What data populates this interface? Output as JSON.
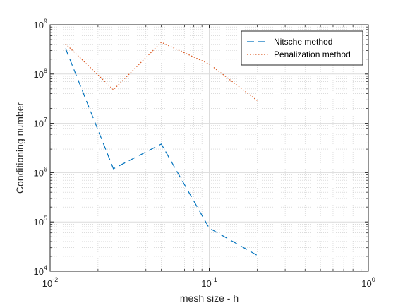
{
  "chart_data": {
    "type": "line",
    "xlabel": "mesh size - h",
    "ylabel": "Conditioning number",
    "x_scale": "log",
    "y_scale": "log",
    "xlim": [
      0.01,
      1
    ],
    "ylim": [
      10000,
      1000000000
    ],
    "grid": true,
    "minor_grid": true,
    "legend_position": "top-right",
    "x_ticks": [
      {
        "value": 0.01,
        "base": "10",
        "exp": "-2"
      },
      {
        "value": 0.1,
        "base": "10",
        "exp": "-1"
      },
      {
        "value": 1,
        "base": "10",
        "exp": "0"
      }
    ],
    "y_ticks": [
      {
        "value": 10000,
        "base": "10",
        "exp": "4"
      },
      {
        "value": 100000,
        "base": "10",
        "exp": "5"
      },
      {
        "value": 1000000,
        "base": "10",
        "exp": "6"
      },
      {
        "value": 10000000,
        "base": "10",
        "exp": "7"
      },
      {
        "value": 100000000,
        "base": "10",
        "exp": "8"
      },
      {
        "value": 1000000000,
        "base": "10",
        "exp": "9"
      }
    ],
    "series": [
      {
        "name": "Nitsche method",
        "color": "#0072BD",
        "style": "dashed",
        "x": [
          0.0125,
          0.025,
          0.05,
          0.1,
          0.2
        ],
        "y": [
          330000000,
          1200000,
          3800000,
          75000,
          21000
        ]
      },
      {
        "name": "Penalization method",
        "color": "#D95319",
        "style": "dotted",
        "x": [
          0.0125,
          0.025,
          0.05,
          0.1,
          0.2
        ],
        "y": [
          410000000,
          48000000,
          440000000,
          160000000,
          29000000
        ]
      }
    ]
  }
}
